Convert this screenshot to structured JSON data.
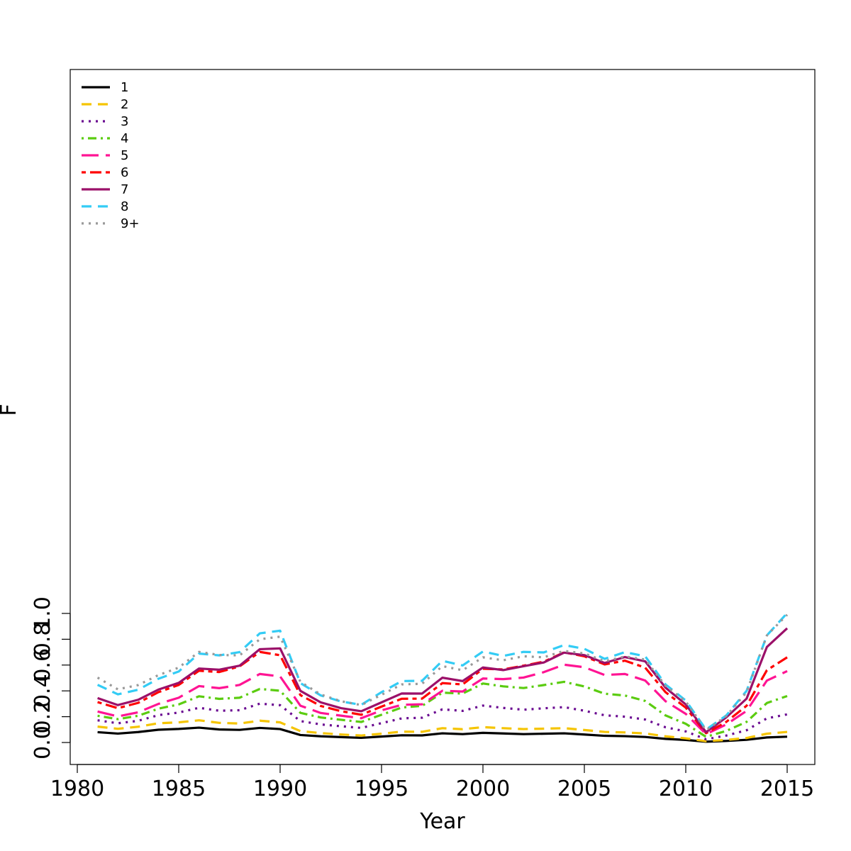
{
  "chart_data": {
    "type": "line",
    "title": "",
    "xlabel": "Year",
    "ylabel": "F",
    "xlim": [
      1980,
      2016
    ],
    "ylim": [
      -0.03,
      1.04
    ],
    "x_ticks": [
      1980,
      1985,
      1990,
      1995,
      2000,
      2005,
      2010,
      2015
    ],
    "y_ticks": [
      "0.0",
      "0.2",
      "0.4",
      "0.6",
      "0.8",
      "1.0"
    ],
    "grid": false,
    "legend_position": "top-left",
    "x": [
      1981,
      1982,
      1983,
      1984,
      1985,
      1986,
      1987,
      1988,
      1989,
      1990,
      1991,
      1992,
      1993,
      1994,
      1995,
      1996,
      1997,
      1998,
      1999,
      2000,
      2001,
      2002,
      2003,
      2004,
      2005,
      2006,
      2007,
      2008,
      2009,
      2010,
      2011,
      2012,
      2013,
      2014,
      2015
    ],
    "series": [
      {
        "name": "1",
        "color": "#000000",
        "dash": "solid",
        "values": [
          0.08,
          0.069,
          0.081,
          0.099,
          0.105,
          0.115,
          0.101,
          0.098,
          0.113,
          0.104,
          0.058,
          0.048,
          0.042,
          0.036,
          0.046,
          0.056,
          0.055,
          0.071,
          0.065,
          0.075,
          0.07,
          0.065,
          0.068,
          0.071,
          0.062,
          0.052,
          0.049,
          0.043,
          0.028,
          0.02,
          0.006,
          0.012,
          0.021,
          0.039,
          0.045
        ]
      },
      {
        "name": "2",
        "color": "#f5c400",
        "dash": "dashed",
        "values": [
          0.123,
          0.106,
          0.122,
          0.149,
          0.156,
          0.172,
          0.152,
          0.147,
          0.169,
          0.156,
          0.088,
          0.073,
          0.062,
          0.054,
          0.068,
          0.084,
          0.083,
          0.111,
          0.103,
          0.119,
          0.111,
          0.104,
          0.107,
          0.111,
          0.097,
          0.082,
          0.078,
          0.07,
          0.048,
          0.032,
          0.01,
          0.02,
          0.035,
          0.068,
          0.082
        ]
      },
      {
        "name": "3",
        "color": "#6a0a91",
        "dash": "dotted",
        "values": [
          0.172,
          0.149,
          0.168,
          0.212,
          0.232,
          0.269,
          0.246,
          0.25,
          0.301,
          0.289,
          0.166,
          0.14,
          0.126,
          0.113,
          0.15,
          0.187,
          0.192,
          0.257,
          0.245,
          0.286,
          0.268,
          0.254,
          0.265,
          0.274,
          0.246,
          0.211,
          0.2,
          0.178,
          0.118,
          0.086,
          0.025,
          0.054,
          0.095,
          0.187,
          0.218
        ]
      },
      {
        "name": "4",
        "color": "#5bcc10",
        "dash": "dotdash",
        "values": [
          0.207,
          0.181,
          0.207,
          0.262,
          0.295,
          0.358,
          0.338,
          0.347,
          0.415,
          0.401,
          0.23,
          0.194,
          0.176,
          0.159,
          0.215,
          0.271,
          0.284,
          0.386,
          0.379,
          0.457,
          0.435,
          0.422,
          0.445,
          0.47,
          0.434,
          0.378,
          0.364,
          0.322,
          0.21,
          0.145,
          0.044,
          0.09,
          0.16,
          0.306,
          0.36
        ]
      },
      {
        "name": "5",
        "color": "#ff1493",
        "dash": "longdash",
        "values": [
          0.24,
          0.202,
          0.234,
          0.299,
          0.347,
          0.437,
          0.421,
          0.446,
          0.531,
          0.512,
          0.285,
          0.229,
          0.208,
          0.188,
          0.249,
          0.292,
          0.296,
          0.401,
          0.395,
          0.496,
          0.491,
          0.503,
          0.545,
          0.603,
          0.583,
          0.523,
          0.531,
          0.48,
          0.32,
          0.222,
          0.065,
          0.14,
          0.245,
          0.48,
          0.553
        ]
      },
      {
        "name": "6",
        "color": "#ff0000",
        "dash": "twodash",
        "values": [
          0.313,
          0.266,
          0.307,
          0.39,
          0.446,
          0.556,
          0.546,
          0.59,
          0.702,
          0.676,
          0.367,
          0.283,
          0.243,
          0.215,
          0.278,
          0.339,
          0.34,
          0.46,
          0.45,
          0.571,
          0.566,
          0.595,
          0.626,
          0.698,
          0.668,
          0.605,
          0.634,
          0.58,
          0.39,
          0.27,
          0.072,
          0.16,
          0.285,
          0.56,
          0.66
        ]
      },
      {
        "name": "7",
        "color": "#9b1069",
        "dash": "solid",
        "values": [
          0.344,
          0.29,
          0.331,
          0.41,
          0.462,
          0.573,
          0.564,
          0.595,
          0.723,
          0.729,
          0.4,
          0.311,
          0.266,
          0.242,
          0.311,
          0.38,
          0.379,
          0.502,
          0.476,
          0.581,
          0.561,
          0.591,
          0.62,
          0.696,
          0.677,
          0.616,
          0.662,
          0.629,
          0.425,
          0.295,
          0.08,
          0.195,
          0.34,
          0.74,
          0.885
        ]
      },
      {
        "name": "8",
        "color": "#33ccf5",
        "dash": "dashed",
        "values": [
          0.447,
          0.373,
          0.409,
          0.494,
          0.55,
          0.689,
          0.675,
          0.7,
          0.846,
          0.866,
          0.46,
          0.365,
          0.318,
          0.292,
          0.39,
          0.476,
          0.478,
          0.633,
          0.597,
          0.705,
          0.671,
          0.702,
          0.698,
          0.755,
          0.726,
          0.648,
          0.7,
          0.668,
          0.45,
          0.325,
          0.1,
          0.21,
          0.4,
          0.83,
          1.003
        ]
      },
      {
        "name": "9+",
        "color": "#999999",
        "dash": "dotted",
        "values": [
          0.503,
          0.412,
          0.445,
          0.522,
          0.58,
          0.702,
          0.678,
          0.675,
          0.8,
          0.82,
          0.47,
          0.372,
          0.32,
          0.29,
          0.37,
          0.45,
          0.455,
          0.592,
          0.56,
          0.66,
          0.637,
          0.668,
          0.66,
          0.71,
          0.69,
          0.63,
          0.666,
          0.643,
          0.44,
          0.318,
          0.095,
          0.205,
          0.39,
          0.83,
          0.99
        ]
      }
    ]
  }
}
